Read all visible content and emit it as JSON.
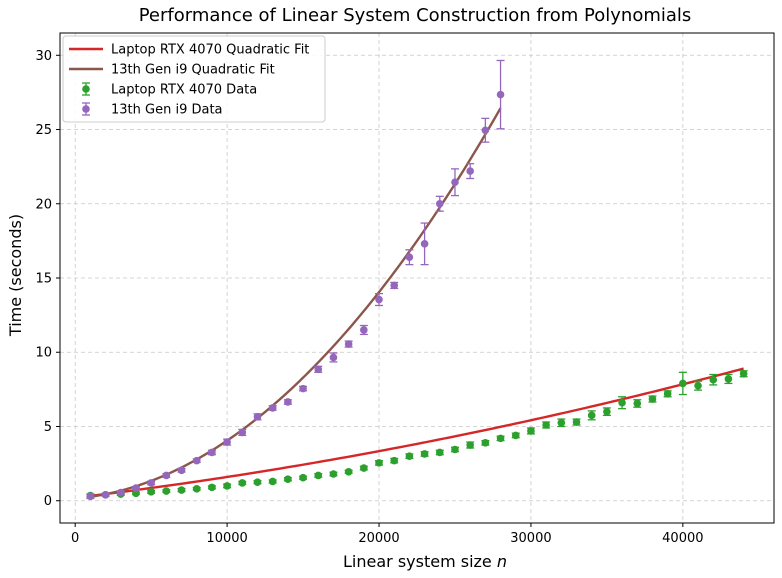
{
  "chart_data": {
    "type": "scatter",
    "title": "Performance of Linear System Construction from Polynomials",
    "xlabel": "Linear system size",
    "xlabel_var": "n",
    "ylabel": "Time (seconds)",
    "xlim": [
      -1000,
      46000
    ],
    "ylim": [
      -1.5,
      31.5
    ],
    "xticks": [
      0,
      10000,
      20000,
      30000,
      40000
    ],
    "yticks": [
      0,
      5,
      10,
      15,
      20,
      25,
      30
    ],
    "grid": true,
    "legend_position": "top-left",
    "colors": {
      "rtx_fit": "#d62728",
      "i9_fit": "#8c564b",
      "rtx_data": "#2ca02c",
      "i9_data": "#9467bd"
    },
    "legend": [
      {
        "label": "Laptop RTX 4070 Quadratic Fit",
        "kind": "line",
        "color_key": "rtx_fit"
      },
      {
        "label": "13th Gen i9 Quadratic Fit",
        "kind": "line",
        "color_key": "i9_fit"
      },
      {
        "label": "Laptop RTX 4070 Data",
        "kind": "errorbar",
        "color_key": "rtx_data"
      },
      {
        "label": "13th Gen i9 Data",
        "kind": "errorbar",
        "color_key": "i9_data"
      }
    ],
    "series": [
      {
        "name": "Laptop RTX 4070 Data",
        "kind": "errorbar",
        "color_key": "rtx_data",
        "x": [
          1000,
          2000,
          3000,
          4000,
          5000,
          6000,
          7000,
          8000,
          9000,
          10000,
          11000,
          12000,
          13000,
          14000,
          15000,
          16000,
          17000,
          18000,
          19000,
          20000,
          21000,
          22000,
          23000,
          24000,
          25000,
          26000,
          27000,
          28000,
          29000,
          30000,
          31000,
          32000,
          33000,
          34000,
          35000,
          36000,
          37000,
          38000,
          39000,
          40000,
          41000,
          42000,
          43000,
          44000
        ],
        "y": [
          0.35,
          0.4,
          0.45,
          0.5,
          0.6,
          0.65,
          0.72,
          0.8,
          0.9,
          1.0,
          1.2,
          1.25,
          1.3,
          1.45,
          1.55,
          1.7,
          1.8,
          1.95,
          2.2,
          2.55,
          2.7,
          3.0,
          3.15,
          3.25,
          3.45,
          3.75,
          3.9,
          4.2,
          4.4,
          4.7,
          5.1,
          5.25,
          5.3,
          5.75,
          6.0,
          6.6,
          6.55,
          6.85,
          7.2,
          7.9,
          7.75,
          8.15,
          8.2,
          8.55
        ],
        "err": [
          0.1,
          0.08,
          0.08,
          0.08,
          0.1,
          0.08,
          0.1,
          0.08,
          0.1,
          0.12,
          0.1,
          0.1,
          0.1,
          0.1,
          0.1,
          0.12,
          0.12,
          0.1,
          0.12,
          0.15,
          0.15,
          0.15,
          0.15,
          0.15,
          0.15,
          0.2,
          0.15,
          0.15,
          0.15,
          0.2,
          0.2,
          0.25,
          0.2,
          0.3,
          0.25,
          0.4,
          0.25,
          0.2,
          0.2,
          0.75,
          0.3,
          0.35,
          0.3,
          0.2
        ]
      },
      {
        "name": "13th Gen i9 Data",
        "kind": "errorbar",
        "color_key": "i9_data",
        "x": [
          1000,
          2000,
          3000,
          4000,
          5000,
          6000,
          7000,
          8000,
          9000,
          10000,
          11000,
          12000,
          13000,
          14000,
          15000,
          16000,
          17000,
          18000,
          19000,
          20000,
          21000,
          22000,
          23000,
          24000,
          25000,
          26000,
          27000,
          28000
        ],
        "y": [
          0.3,
          0.4,
          0.55,
          0.85,
          1.2,
          1.7,
          2.05,
          2.7,
          3.25,
          3.95,
          4.6,
          5.65,
          6.25,
          6.65,
          7.55,
          8.85,
          9.65,
          10.55,
          11.5,
          13.55,
          14.5,
          16.4,
          17.3,
          20.0,
          21.45,
          22.2,
          24.95,
          27.35
        ],
        "err": [
          0.15,
          0.1,
          0.1,
          0.1,
          0.12,
          0.12,
          0.12,
          0.12,
          0.15,
          0.2,
          0.2,
          0.2,
          0.15,
          0.15,
          0.15,
          0.2,
          0.3,
          0.2,
          0.3,
          0.4,
          0.2,
          0.5,
          1.4,
          0.5,
          0.9,
          0.5,
          0.8,
          2.3
        ]
      }
    ],
    "fits": [
      {
        "name": "Laptop RTX 4070 Quadratic Fit",
        "kind": "line",
        "color_key": "rtx_fit",
        "x_range": [
          1000,
          44000
        ],
        "coefficients": {
          "a": 1.7e-09,
          "b": 0.000123,
          "c": 0.2
        }
      },
      {
        "name": "13th Gen i9 Quadratic Fit",
        "kind": "line",
        "color_key": "i9_fit",
        "x_range": [
          1000,
          28000
        ],
        "coefficients": {
          "a": 3.05e-08,
          "b": 8.5e-05,
          "c": 0.15
        }
      }
    ]
  }
}
